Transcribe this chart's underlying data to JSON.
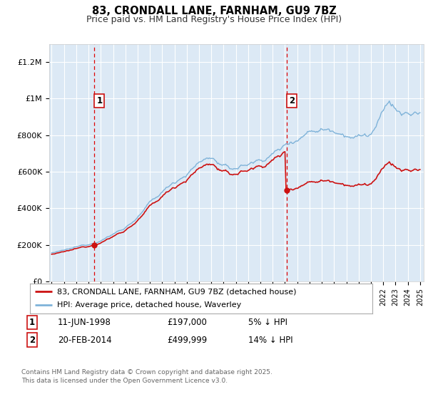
{
  "title": "83, CRONDALL LANE, FARNHAM, GU9 7BZ",
  "subtitle": "Price paid vs. HM Land Registry's House Price Index (HPI)",
  "plot_background": "#dce9f5",
  "grid_color": "#ffffff",
  "hpi_color": "#7fb3d9",
  "price_color": "#cc1111",
  "ylim": [
    0,
    1300000
  ],
  "yticks": [
    0,
    200000,
    400000,
    600000,
    800000,
    1000000,
    1200000
  ],
  "ytick_labels": [
    "£0",
    "£200K",
    "£400K",
    "£600K",
    "£800K",
    "£1M",
    "£1.2M"
  ],
  "year_start": 1995,
  "year_end": 2025,
  "transaction1_year": 1998.45,
  "transaction1_price": 197000,
  "transaction2_year": 2014.12,
  "transaction2_price": 499999,
  "legend_label_price": "83, CRONDALL LANE, FARNHAM, GU9 7BZ (detached house)",
  "legend_label_hpi": "HPI: Average price, detached house, Waverley",
  "annotation1_label": "1",
  "annotation2_label": "2",
  "footer": "Contains HM Land Registry data © Crown copyright and database right 2025.\nThis data is licensed under the Open Government Licence v3.0."
}
